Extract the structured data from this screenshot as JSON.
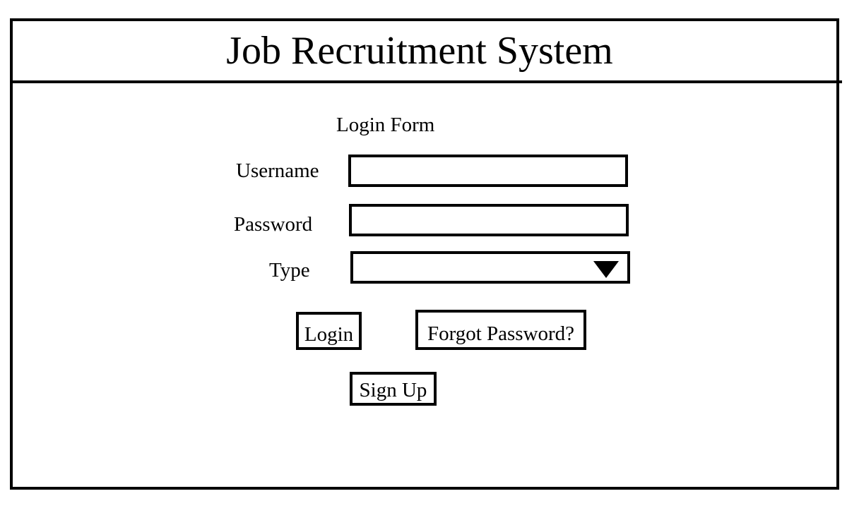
{
  "app": {
    "title": "Job Recruitment System"
  },
  "login_form": {
    "title": "Login Form",
    "username_label": "Username",
    "username_value": "",
    "password_label": "Password",
    "password_value": "",
    "type_label": "Type",
    "type_value": "",
    "login_label": "Login",
    "forgot_password_label": "Forgot Password?",
    "signup_label": "Sign Up"
  },
  "icons": {
    "type_dropdown": "triangle-down-icon"
  }
}
